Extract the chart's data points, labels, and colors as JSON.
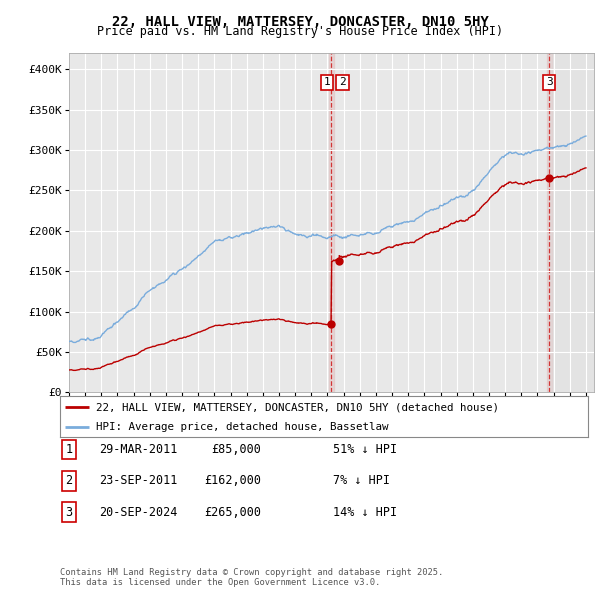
{
  "title": "22, HALL VIEW, MATTERSEY, DONCASTER, DN10 5HY",
  "subtitle": "Price paid vs. HM Land Registry's House Price Index (HPI)",
  "ylim": [
    0,
    420000
  ],
  "yticks": [
    0,
    50000,
    100000,
    150000,
    200000,
    250000,
    300000,
    350000,
    400000
  ],
  "ytick_labels": [
    "£0",
    "£50K",
    "£100K",
    "£150K",
    "£200K",
    "£250K",
    "£300K",
    "£350K",
    "£400K"
  ],
  "background_color": "#ffffff",
  "plot_bg_color": "#e8e8e8",
  "grid_color": "#ffffff",
  "red_color": "#bb0000",
  "blue_color": "#7aacdc",
  "vline_color": "#cc0000",
  "t1_year": 2011.24,
  "t2_year": 2011.73,
  "t3_year": 2024.73,
  "t1_price": 85000,
  "t2_price": 162000,
  "t3_price": 265000,
  "transactions": [
    {
      "num": "1",
      "date": "29-MAR-2011",
      "price": 85000,
      "pct": "51% ↓ HPI"
    },
    {
      "num": "2",
      "date": "23-SEP-2011",
      "price": 162000,
      "pct": "7% ↓ HPI"
    },
    {
      "num": "3",
      "date": "20-SEP-2024",
      "price": 265000,
      "pct": "14% ↓ HPI"
    }
  ],
  "legend_entries": [
    {
      "label": "22, HALL VIEW, MATTERSEY, DONCASTER, DN10 5HY (detached house)",
      "color": "#bb0000"
    },
    {
      "label": "HPI: Average price, detached house, Bassetlaw",
      "color": "#7aacdc"
    }
  ],
  "footer": "Contains HM Land Registry data © Crown copyright and database right 2025.\nThis data is licensed under the Open Government Licence v3.0.",
  "xlim_start": 1995.0,
  "xlim_end": 2027.5
}
